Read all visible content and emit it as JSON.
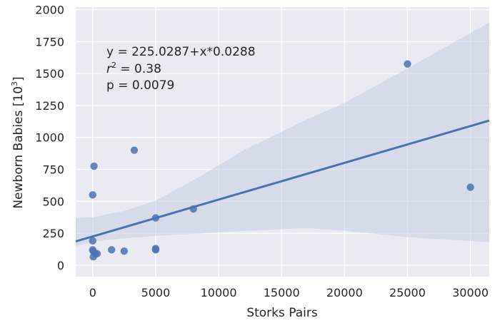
{
  "chart_data": {
    "type": "scatter",
    "xlabel": "Storks Pairs",
    "ylabel": "Newborn Babies [10",
    "ylabel_sup": "3",
    "ylabel_close": "]",
    "xlim": [
      -1350,
      31500
    ],
    "ylim": [
      -90,
      2020
    ],
    "xticks": [
      0,
      5000,
      10000,
      15000,
      20000,
      25000,
      30000
    ],
    "yticks": [
      0,
      250,
      500,
      750,
      1000,
      1250,
      1500,
      1750,
      2000
    ],
    "x": [
      100,
      0,
      3300,
      0,
      0,
      40,
      190,
      5000,
      8000,
      5000,
      5000,
      1500,
      2500,
      350,
      30000,
      25000,
      50
    ],
    "y": [
      775,
      550,
      900,
      190,
      120,
      110,
      90,
      370,
      440,
      120,
      130,
      120,
      110,
      90,
      610,
      1575,
      65
    ],
    "regression": {
      "intercept": 225.0287,
      "slope": 0.0288
    },
    "confidence_band": {
      "x": [
        -1350,
        0,
        2500,
        5000,
        8000,
        12000,
        17000,
        20000,
        25000,
        31500
      ],
      "lower": [
        150,
        185,
        210,
        230,
        245,
        268,
        290,
        270,
        220,
        180
      ],
      "upper": [
        370,
        375,
        425,
        505,
        665,
        900,
        1140,
        1270,
        1540,
        1900
      ]
    },
    "annotation": {
      "line1": "y = 225.0287+x*0.0288",
      "r_label": "r",
      "r_sup": "2",
      "r_value": " = 0.38",
      "line3": "p = 0.0079"
    },
    "colors": {
      "background": "#eaeaf2",
      "grid": "#ffffff",
      "points": "#4c72b0",
      "line": "#4c72b0",
      "band": "#c4cde4"
    },
    "grid": true
  }
}
